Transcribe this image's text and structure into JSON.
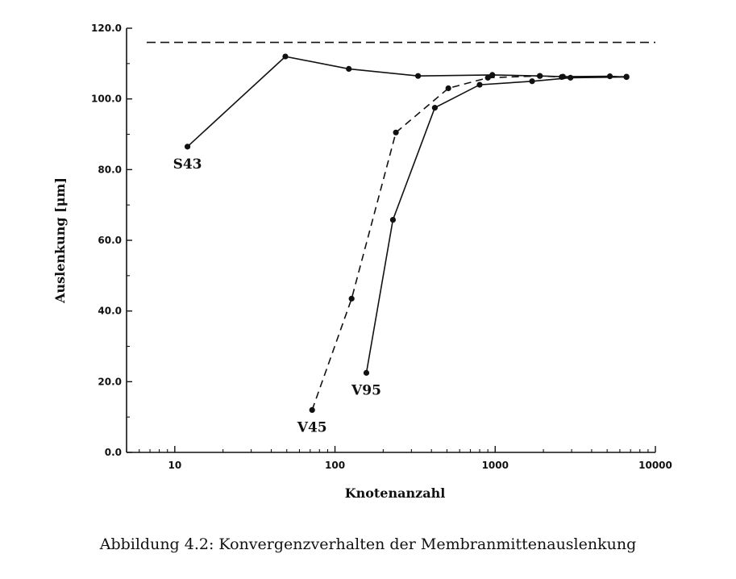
{
  "chart_data": {
    "type": "line",
    "title": "",
    "xlabel": "Knotenanzahl",
    "ylabel": "Auslenkung [μm]",
    "x_scale": "log",
    "xlim": [
      5,
      10000
    ],
    "ylim": [
      0,
      120
    ],
    "grid": false,
    "x_tick_labels": [
      "10",
      "100",
      "1000",
      "10000"
    ],
    "y_tick_labels": [
      "0.0",
      "20.0",
      "40.0",
      "60.0",
      "80.0",
      "100.0",
      "120.0"
    ],
    "reference_line": {
      "y": 116,
      "style": "dashed"
    },
    "series": [
      {
        "name": "S43",
        "style": "solid",
        "points": [
          [
            12,
            86.5
          ],
          [
            49,
            112
          ],
          [
            122,
            108.5
          ],
          [
            330,
            106.5
          ],
          [
            960,
            106.8
          ],
          [
            1900,
            106.5
          ],
          [
            2650,
            106.3
          ],
          [
            5200,
            106.4
          ],
          [
            6600,
            106.2
          ]
        ]
      },
      {
        "name": "V45",
        "style": "dashed",
        "points": [
          [
            72,
            12
          ],
          [
            127,
            43.5
          ],
          [
            240,
            90.5
          ],
          [
            510,
            103
          ],
          [
            900,
            106
          ],
          [
            1900,
            106.5
          ],
          [
            2600,
            106.2
          ],
          [
            6600,
            106.3
          ]
        ]
      },
      {
        "name": "V95",
        "style": "solid",
        "points": [
          [
            157,
            22.5
          ],
          [
            230,
            65.8
          ],
          [
            420,
            97.5
          ],
          [
            800,
            104
          ],
          [
            1700,
            105
          ],
          [
            2950,
            106
          ],
          [
            6600,
            106.2
          ]
        ]
      }
    ]
  },
  "caption": "Abbildung 4.2: Konvergenzverhalten der Membranmittenauslenkung"
}
